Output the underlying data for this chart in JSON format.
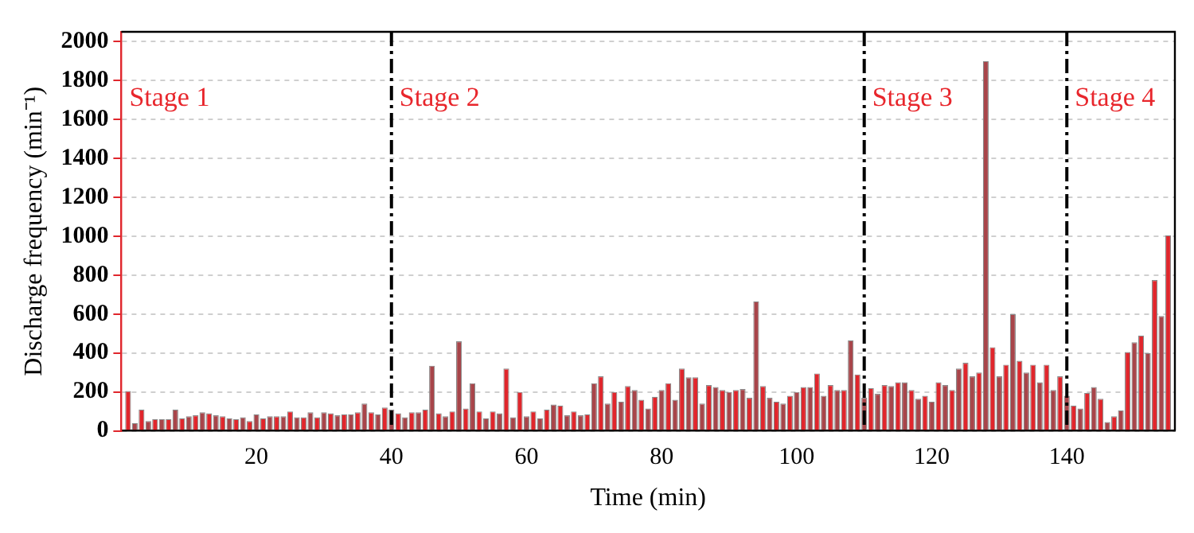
{
  "chart_data": {
    "type": "bar",
    "xlabel": "Time (min)",
    "ylabel": "Discharge frequency (min⁻¹)",
    "x": [
      1,
      2,
      3,
      4,
      5,
      6,
      7,
      8,
      9,
      10,
      11,
      12,
      13,
      14,
      15,
      16,
      17,
      18,
      19,
      20,
      21,
      22,
      23,
      24,
      25,
      26,
      27,
      28,
      29,
      30,
      31,
      32,
      33,
      34,
      35,
      36,
      37,
      38,
      39,
      40,
      41,
      42,
      43,
      44,
      45,
      46,
      47,
      48,
      49,
      50,
      51,
      52,
      53,
      54,
      55,
      56,
      57,
      58,
      59,
      60,
      61,
      62,
      63,
      64,
      65,
      66,
      67,
      68,
      69,
      70,
      71,
      72,
      73,
      74,
      75,
      76,
      77,
      78,
      79,
      80,
      81,
      82,
      83,
      84,
      85,
      86,
      87,
      88,
      89,
      90,
      91,
      92,
      93,
      94,
      95,
      96,
      97,
      98,
      99,
      100,
      101,
      102,
      103,
      104,
      105,
      106,
      107,
      108,
      109,
      110,
      111,
      112,
      113,
      114,
      115,
      116,
      117,
      118,
      119,
      120,
      121,
      122,
      123,
      124,
      125,
      126,
      127,
      128,
      129,
      130,
      131,
      132,
      133,
      134,
      135,
      136,
      137,
      138,
      139,
      140,
      141,
      142,
      143,
      144,
      145,
      146,
      147,
      148,
      149,
      150,
      151,
      152,
      153,
      154,
      155
    ],
    "values": [
      205,
      40,
      110,
      50,
      60,
      60,
      60,
      110,
      65,
      75,
      80,
      95,
      90,
      80,
      75,
      65,
      60,
      70,
      50,
      85,
      65,
      75,
      75,
      75,
      100,
      70,
      70,
      95,
      70,
      95,
      90,
      80,
      85,
      85,
      95,
      140,
      95,
      85,
      120,
      110,
      90,
      70,
      95,
      95,
      110,
      335,
      90,
      75,
      100,
      460,
      115,
      245,
      100,
      65,
      100,
      90,
      320,
      70,
      200,
      75,
      100,
      65,
      110,
      135,
      130,
      80,
      100,
      80,
      85,
      245,
      280,
      140,
      200,
      150,
      230,
      210,
      160,
      115,
      175,
      210,
      245,
      160,
      320,
      275,
      275,
      140,
      235,
      225,
      210,
      200,
      210,
      215,
      170,
      665,
      230,
      170,
      150,
      140,
      180,
      200,
      225,
      225,
      295,
      180,
      235,
      210,
      210,
      465,
      290,
      170,
      220,
      190,
      235,
      230,
      250,
      250,
      210,
      165,
      180,
      150,
      250,
      235,
      210,
      320,
      350,
      280,
      300,
      1900,
      430,
      280,
      340,
      600,
      360,
      300,
      340,
      250,
      340,
      210,
      280,
      180,
      130,
      115,
      195,
      225,
      165,
      45,
      75,
      105,
      405,
      455,
      490,
      400,
      775,
      590,
      1005
    ],
    "colors": [
      "#e0262c",
      "#a8454a",
      "#e0262c",
      "#a8454a",
      "#e0262c",
      "#a8454a",
      "#e0262c",
      "#a8454a",
      "#e0262c",
      "#a8454a",
      "#e0262c",
      "#a8454a",
      "#e0262c",
      "#a8454a",
      "#e0262c",
      "#a8454a",
      "#e0262c",
      "#a8454a",
      "#e0262c",
      "#a8454a",
      "#e0262c",
      "#a8454a",
      "#e0262c",
      "#a8454a",
      "#e0262c",
      "#a8454a",
      "#e0262c",
      "#a8454a",
      "#e0262c",
      "#a8454a",
      "#e0262c",
      "#a8454a",
      "#e0262c",
      "#a8454a",
      "#e0262c",
      "#a8454a",
      "#e0262c",
      "#a8454a",
      "#e0262c",
      "#a8454a",
      "#e0262c",
      "#a8454a",
      "#e0262c",
      "#a8454a",
      "#e0262c",
      "#a8454a",
      "#e0262c",
      "#a8454a",
      "#e0262c",
      "#a8454a",
      "#e0262c",
      "#a8454a",
      "#e0262c",
      "#a8454a",
      "#e0262c",
      "#a8454a",
      "#e0262c",
      "#a8454a",
      "#e0262c",
      "#a8454a",
      "#e0262c",
      "#a8454a",
      "#e0262c",
      "#a8454a",
      "#e0262c",
      "#a8454a",
      "#e0262c",
      "#a8454a",
      "#e0262c",
      "#a8454a",
      "#e0262c",
      "#a8454a",
      "#e0262c",
      "#a8454a",
      "#e0262c",
      "#a8454a",
      "#e0262c",
      "#a8454a",
      "#e0262c",
      "#a8454a",
      "#e0262c",
      "#a8454a",
      "#e0262c",
      "#a8454a",
      "#e0262c",
      "#a8454a",
      "#e0262c",
      "#a8454a",
      "#e0262c",
      "#a8454a",
      "#e0262c",
      "#a8454a",
      "#e0262c",
      "#a8454a",
      "#e0262c",
      "#a8454a",
      "#e0262c",
      "#a8454a",
      "#e0262c",
      "#a8454a",
      "#e0262c",
      "#a8454a",
      "#e0262c",
      "#a8454a",
      "#e0262c",
      "#a8454a",
      "#e0262c",
      "#a8454a",
      "#e0262c",
      "#a8454a",
      "#e0262c",
      "#a8454a",
      "#e0262c",
      "#a8454a",
      "#e0262c",
      "#a8454a",
      "#e0262c",
      "#a8454a",
      "#e0262c",
      "#a8454a",
      "#e0262c",
      "#a8454a",
      "#e0262c",
      "#a8454a",
      "#e0262c",
      "#a8454a",
      "#e0262c",
      "#a8454a",
      "#e0262c",
      "#a8454a",
      "#e0262c",
      "#a8454a",
      "#e0262c",
      "#a8454a",
      "#e0262c",
      "#a8454a",
      "#e0262c",
      "#a8454a",
      "#e0262c",
      "#a8454a",
      "#e0262c",
      "#a8454a",
      "#e0262c",
      "#a8454a",
      "#e0262c",
      "#a8454a",
      "#e0262c",
      "#a8454a",
      "#e0262c",
      "#a8454a",
      "#e0262c",
      "#a8454a",
      "#e0262c",
      "#a8454a",
      "#e0262c"
    ],
    "xlim": [
      0,
      156
    ],
    "xticks": [
      20,
      40,
      60,
      80,
      100,
      120,
      140
    ],
    "ylim": [
      0,
      2050
    ],
    "yticks": [
      0,
      200,
      400,
      600,
      800,
      1000,
      1200,
      1400,
      1600,
      1800,
      2000
    ],
    "ref_lines": [
      {
        "axis": "x",
        "value": 40,
        "label": "Stage 2",
        "color": "#000000",
        "line_style": "dashdot"
      },
      {
        "axis": "x",
        "value": 110,
        "label": "Stage 3",
        "color": "#000000",
        "line_style": "dashdot"
      },
      {
        "axis": "x",
        "value": 140,
        "label": "Stage 4",
        "color": "#000000",
        "line_style": "dashdot"
      }
    ],
    "annotations": [
      "Stage 1"
    ],
    "grid": "y",
    "legend": false
  }
}
